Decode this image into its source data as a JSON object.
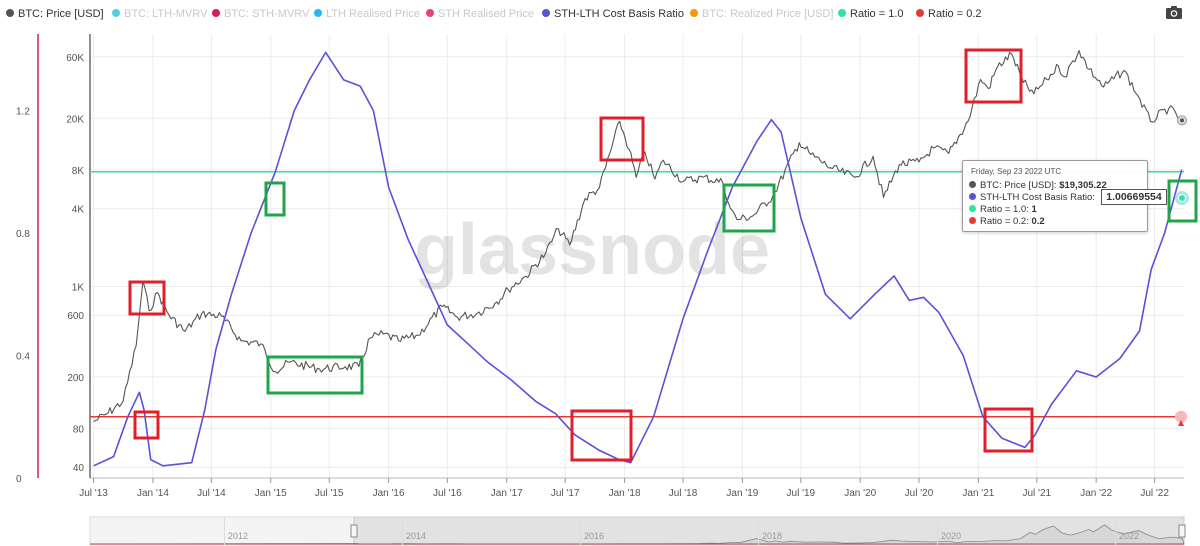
{
  "legend": [
    {
      "label": "BTC: Price [USD]",
      "color": "#555555",
      "active": true
    },
    {
      "label": "BTC: LTH-MVRV",
      "color": "#4dd0e1",
      "active": false
    },
    {
      "label": "BTC: STH-MVRV",
      "color": "#d81b60",
      "active": false
    },
    {
      "label": "LTH Realised Price",
      "color": "#29b6f6",
      "active": false
    },
    {
      "label": "STH Realised Price",
      "color": "#ec407a",
      "active": false
    },
    {
      "label": "STH-LTH Cost Basis Ratio",
      "color": "#5a52d5",
      "active": true
    },
    {
      "label": "BTC: Realized Price [USD]",
      "color": "#ff9800",
      "active": false
    },
    {
      "label": "Ratio = 1.0",
      "color": "#2ee59d",
      "active": true
    },
    {
      "label": "Ratio = 0.2",
      "color": "#e53935",
      "active": true
    }
  ],
  "watermark": "glassnode",
  "tooltip": {
    "date": "Friday, Sep 23 2022 UTC",
    "rows": [
      {
        "label": "BTC: Price [USD]:",
        "value": "$19,305.22",
        "color": "#555555"
      },
      {
        "label": "STH-LTH Cost Basis Ratio:",
        "value": "1.00669554",
        "color": "#5a52d5"
      },
      {
        "label": "Ratio = 1.0:",
        "value": "1",
        "color": "#2ee59d"
      },
      {
        "label": "Ratio = 0.2:",
        "value": "0.2",
        "color": "#e53935"
      }
    ]
  },
  "navigator": {
    "labels": [
      "2012",
      "2014",
      "2016",
      "2018",
      "2020",
      "2022"
    ]
  },
  "chart_data": {
    "type": "line",
    "x_ticks": [
      "Jul '13",
      "Jan '14",
      "Jul '14",
      "Jan '15",
      "Jul '15",
      "Jan '16",
      "Jul '16",
      "Jan '17",
      "Jul '17",
      "Jan '18",
      "Jul '18",
      "Jan '19",
      "Jul '19",
      "Jan '20",
      "Jul '20",
      "Jan '21",
      "Jul '21",
      "Jan '22",
      "Jul '22"
    ],
    "left_axis": {
      "ticks": [
        "1.2",
        "0.8",
        "0.4",
        "0"
      ],
      "values": [
        1.2,
        0.8,
        0.4,
        0
      ],
      "range": [
        0,
        1.45
      ]
    },
    "right_axis": {
      "scale": "log",
      "ticks": [
        "60K",
        "20K",
        "8K",
        "4K",
        "1K",
        "600",
        "200",
        "80",
        "40"
      ],
      "values": [
        60000,
        20000,
        8000,
        4000,
        1000,
        600,
        200,
        80,
        40
      ],
      "range": [
        33,
        90000
      ]
    },
    "series": [
      {
        "name": "BTC: Price [USD]",
        "axis": "right",
        "color": "#555555",
        "points": [
          [
            "2013-07-01",
            90
          ],
          [
            "2013-08-15",
            105
          ],
          [
            "2013-10-01",
            130
          ],
          [
            "2013-11-10",
            350
          ],
          [
            "2013-12-01",
            1100
          ],
          [
            "2013-12-20",
            650
          ],
          [
            "2014-01-15",
            900
          ],
          [
            "2014-02-20",
            600
          ],
          [
            "2014-04-10",
            450
          ],
          [
            "2014-06-01",
            620
          ],
          [
            "2014-08-01",
            590
          ],
          [
            "2014-10-01",
            380
          ],
          [
            "2014-12-01",
            360
          ],
          [
            "2015-01-15",
            220
          ],
          [
            "2015-03-01",
            260
          ],
          [
            "2015-06-01",
            230
          ],
          [
            "2015-08-20",
            240
          ],
          [
            "2015-10-01",
            240
          ],
          [
            "2015-11-05",
            400
          ],
          [
            "2015-12-15",
            430
          ],
          [
            "2016-02-01",
            380
          ],
          [
            "2016-04-01",
            420
          ],
          [
            "2016-06-15",
            700
          ],
          [
            "2016-08-01",
            580
          ],
          [
            "2016-10-01",
            620
          ],
          [
            "2016-12-01",
            760
          ],
          [
            "2017-01-05",
            950
          ],
          [
            "2017-03-01",
            1200
          ],
          [
            "2017-05-01",
            1800
          ],
          [
            "2017-06-10",
            2800
          ],
          [
            "2017-07-15",
            2100
          ],
          [
            "2017-09-01",
            4800
          ],
          [
            "2017-10-15",
            5800
          ],
          [
            "2017-12-17",
            19000
          ],
          [
            "2018-01-15",
            11500
          ],
          [
            "2018-02-06",
            7000
          ],
          [
            "2018-03-05",
            11000
          ],
          [
            "2018-04-05",
            6800
          ],
          [
            "2018-05-01",
            9500
          ],
          [
            "2018-07-01",
            6500
          ],
          [
            "2018-09-01",
            7000
          ],
          [
            "2018-11-01",
            6400
          ],
          [
            "2018-11-25",
            4000
          ],
          [
            "2018-12-15",
            3300
          ],
          [
            "2019-02-01",
            3500
          ],
          [
            "2019-04-05",
            5000
          ],
          [
            "2019-06-26",
            13000
          ],
          [
            "2019-08-01",
            10500
          ],
          [
            "2019-10-01",
            8300
          ],
          [
            "2019-12-15",
            7000
          ],
          [
            "2020-02-10",
            10200
          ],
          [
            "2020-03-13",
            4900
          ],
          [
            "2020-05-01",
            8800
          ],
          [
            "2020-07-01",
            9200
          ],
          [
            "2020-08-15",
            11800
          ],
          [
            "2020-10-01",
            10700
          ],
          [
            "2020-11-30",
            19000
          ],
          [
            "2021-01-08",
            40000
          ],
          [
            "2021-02-01",
            34000
          ],
          [
            "2021-03-01",
            50000
          ],
          [
            "2021-04-14",
            63000
          ],
          [
            "2021-05-20",
            38000
          ],
          [
            "2021-06-22",
            31000
          ],
          [
            "2021-08-01",
            40000
          ],
          [
            "2021-09-06",
            51000
          ],
          [
            "2021-09-25",
            42000
          ],
          [
            "2021-11-09",
            67000
          ],
          [
            "2021-12-10",
            48000
          ],
          [
            "2022-01-24",
            35000
          ],
          [
            "2022-03-28",
            47000
          ],
          [
            "2022-05-10",
            30000
          ],
          [
            "2022-06-18",
            19000
          ],
          [
            "2022-08-14",
            24000
          ],
          [
            "2022-09-23",
            19305.22
          ]
        ]
      },
      {
        "name": "STH-LTH Cost Basis Ratio",
        "axis": "left",
        "color": "#5a52d5",
        "points": [
          [
            "2013-07-01",
            0.04
          ],
          [
            "2013-09-01",
            0.07
          ],
          [
            "2013-10-15",
            0.2
          ],
          [
            "2013-11-20",
            0.28
          ],
          [
            "2013-12-05",
            0.22
          ],
          [
            "2013-12-25",
            0.06
          ],
          [
            "2014-02-01",
            0.04
          ],
          [
            "2014-05-01",
            0.05
          ],
          [
            "2014-06-10",
            0.22
          ],
          [
            "2014-07-15",
            0.42
          ],
          [
            "2014-09-01",
            0.6
          ],
          [
            "2014-11-01",
            0.8
          ],
          [
            "2015-01-15",
            1.0
          ],
          [
            "2015-03-15",
            1.2
          ],
          [
            "2015-05-01",
            1.3
          ],
          [
            "2015-06-20",
            1.39
          ],
          [
            "2015-08-15",
            1.3
          ],
          [
            "2015-10-05",
            1.28
          ],
          [
            "2015-11-15",
            1.2
          ],
          [
            "2016-01-01",
            0.95
          ],
          [
            "2016-03-01",
            0.78
          ],
          [
            "2016-05-01",
            0.64
          ],
          [
            "2016-07-01",
            0.5
          ],
          [
            "2016-09-01",
            0.44
          ],
          [
            "2016-11-01",
            0.38
          ],
          [
            "2017-01-15",
            0.32
          ],
          [
            "2017-04-01",
            0.25
          ],
          [
            "2017-06-01",
            0.21
          ],
          [
            "2017-08-01",
            0.14
          ],
          [
            "2017-10-15",
            0.09
          ],
          [
            "2017-12-15",
            0.06
          ],
          [
            "2018-01-20",
            0.05
          ],
          [
            "2018-04-01",
            0.2
          ],
          [
            "2018-07-01",
            0.52
          ],
          [
            "2018-09-15",
            0.74
          ],
          [
            "2018-12-01",
            0.95
          ],
          [
            "2019-02-15",
            1.1
          ],
          [
            "2019-04-01",
            1.17
          ],
          [
            "2019-05-01",
            1.13
          ],
          [
            "2019-07-01",
            0.85
          ],
          [
            "2019-09-15",
            0.6
          ],
          [
            "2019-12-01",
            0.52
          ],
          [
            "2020-02-15",
            0.6
          ],
          [
            "2020-04-15",
            0.66
          ],
          [
            "2020-06-01",
            0.58
          ],
          [
            "2020-07-15",
            0.59
          ],
          [
            "2020-09-01",
            0.54
          ],
          [
            "2020-11-15",
            0.4
          ],
          [
            "2021-01-15",
            0.2
          ],
          [
            "2021-03-15",
            0.13
          ],
          [
            "2021-05-25",
            0.1
          ],
          [
            "2021-06-25",
            0.14
          ],
          [
            "2021-08-15",
            0.24
          ],
          [
            "2021-11-01",
            0.35
          ],
          [
            "2022-01-01",
            0.33
          ],
          [
            "2022-03-15",
            0.39
          ],
          [
            "2022-05-15",
            0.48
          ],
          [
            "2022-06-20",
            0.68
          ],
          [
            "2022-08-01",
            0.8
          ],
          [
            "2022-09-23",
            1.00669554
          ]
        ]
      },
      {
        "name": "Ratio = 1.0",
        "axis": "left",
        "color": "#2ee59d",
        "value": 1.0
      },
      {
        "name": "Ratio = 0.2",
        "axis": "left",
        "color": "#e53935",
        "value": 0.2
      }
    ],
    "annotations": [
      {
        "shape": "rect",
        "color": "red",
        "on": "BTC: Price [USD]",
        "date": "Dec 2013"
      },
      {
        "shape": "rect",
        "color": "red",
        "on": "STH-LTH Cost Basis Ratio",
        "date": "Jan 2014"
      },
      {
        "shape": "rect",
        "color": "green",
        "on": "STH-LTH Cost Basis Ratio",
        "date": "Jan 2015"
      },
      {
        "shape": "rect",
        "color": "green",
        "on": "BTC: Price [USD]",
        "date": "Jan 2015 - Oct 2015"
      },
      {
        "shape": "rect",
        "color": "red",
        "on": "BTC: Price [USD]",
        "date": "Dec 2017"
      },
      {
        "shape": "rect",
        "color": "red",
        "on": "STH-LTH Cost Basis Ratio",
        "date": "Jun 2017 - Jan 2018"
      },
      {
        "shape": "rect",
        "color": "green",
        "on": "BTC: Price [USD]",
        "date": "Nov 2018 - Apr 2019"
      },
      {
        "shape": "rect",
        "color": "red",
        "on": "BTC: Price [USD]",
        "date": "Jan 2021 - Jun 2021"
      },
      {
        "shape": "rect",
        "color": "red",
        "on": "STH-LTH Cost Basis Ratio",
        "date": "Feb 2021 - Jul 2021"
      },
      {
        "shape": "rect",
        "color": "green",
        "on": "STH-LTH Cost Basis Ratio",
        "date": "Sep 2022"
      }
    ]
  }
}
